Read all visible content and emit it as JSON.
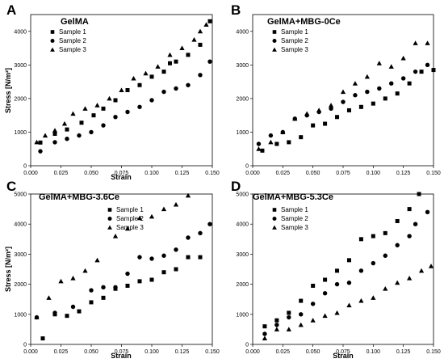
{
  "chart_data": [
    {
      "type": "scatter",
      "panel_label": "A",
      "title": "GelMA",
      "xlabel": "Strain",
      "ylabel": "Stress [N/m²]",
      "xlim": [
        0.0,
        0.15
      ],
      "ylim": [
        0,
        4500
      ],
      "xticks": [
        "0.000",
        "0.025",
        "0.050",
        "0.075",
        "0.100",
        "0.125",
        "0.150"
      ],
      "yticks": [
        "0",
        "1000",
        "2000",
        "3000",
        "4000"
      ],
      "legend_position": "top-left",
      "series": [
        {
          "name": "Sample 1",
          "marker": "square",
          "points": [
            [
              0.008,
              690
            ],
            [
              0.02,
              950
            ],
            [
              0.03,
              1080
            ],
            [
              0.042,
              1280
            ],
            [
              0.052,
              1500
            ],
            [
              0.06,
              1700
            ],
            [
              0.07,
              1950
            ],
            [
              0.08,
              2250
            ],
            [
              0.09,
              2400
            ],
            [
              0.1,
              2650
            ],
            [
              0.11,
              2800
            ],
            [
              0.115,
              3050
            ],
            [
              0.12,
              3100
            ],
            [
              0.13,
              3300
            ],
            [
              0.14,
              3600
            ],
            [
              0.148,
              4300
            ]
          ]
        },
        {
          "name": "Sample 2",
          "marker": "circle",
          "points": [
            [
              0.008,
              430
            ],
            [
              0.02,
              700
            ],
            [
              0.03,
              800
            ],
            [
              0.04,
              900
            ],
            [
              0.05,
              1000
            ],
            [
              0.06,
              1200
            ],
            [
              0.07,
              1450
            ],
            [
              0.08,
              1600
            ],
            [
              0.09,
              1750
            ],
            [
              0.1,
              1950
            ],
            [
              0.11,
              2200
            ],
            [
              0.12,
              2300
            ],
            [
              0.13,
              2400
            ],
            [
              0.14,
              2700
            ],
            [
              0.148,
              3100
            ]
          ]
        },
        {
          "name": "Sample 3",
          "marker": "triangle",
          "points": [
            [
              0.005,
              700
            ],
            [
              0.012,
              900
            ],
            [
              0.02,
              1050
            ],
            [
              0.028,
              1250
            ],
            [
              0.035,
              1550
            ],
            [
              0.045,
              1700
            ],
            [
              0.055,
              1800
            ],
            [
              0.065,
              2000
            ],
            [
              0.075,
              2250
            ],
            [
              0.085,
              2600
            ],
            [
              0.095,
              2750
            ],
            [
              0.105,
              2950
            ],
            [
              0.115,
              3300
            ],
            [
              0.125,
              3500
            ],
            [
              0.135,
              3750
            ],
            [
              0.14,
              4000
            ],
            [
              0.145,
              4200
            ]
          ]
        }
      ]
    },
    {
      "type": "scatter",
      "panel_label": "B",
      "title": "GelMA+MBG-0Ce",
      "xlabel": "",
      "ylabel": "",
      "xlim": [
        0.0,
        0.15
      ],
      "ylim": [
        0,
        4500
      ],
      "xticks": [
        "0.000",
        "0.025",
        "0.050",
        "0.075",
        "0.100",
        "0.125",
        "0.150"
      ],
      "yticks": [
        "0",
        "1000",
        "2000",
        "3000",
        "4000"
      ],
      "legend_position": "top-left",
      "series": [
        {
          "name": "Sample 1",
          "marker": "square",
          "points": [
            [
              0.008,
              450
            ],
            [
              0.02,
              650
            ],
            [
              0.03,
              700
            ],
            [
              0.04,
              850
            ],
            [
              0.05,
              1200
            ],
            [
              0.06,
              1250
            ],
            [
              0.07,
              1450
            ],
            [
              0.08,
              1650
            ],
            [
              0.09,
              1750
            ],
            [
              0.1,
              1850
            ],
            [
              0.11,
              2000
            ],
            [
              0.12,
              2150
            ],
            [
              0.13,
              2450
            ],
            [
              0.14,
              2800
            ],
            [
              0.15,
              2850
            ]
          ]
        },
        {
          "name": "Sample 2",
          "marker": "circle",
          "points": [
            [
              0.005,
              650
            ],
            [
              0.015,
              900
            ],
            [
              0.025,
              1000
            ],
            [
              0.035,
              1400
            ],
            [
              0.045,
              1500
            ],
            [
              0.055,
              1600
            ],
            [
              0.065,
              1700
            ],
            [
              0.075,
              1900
            ],
            [
              0.085,
              2100
            ],
            [
              0.095,
              2200
            ],
            [
              0.105,
              2300
            ],
            [
              0.115,
              2450
            ],
            [
              0.125,
              2600
            ],
            [
              0.135,
              2800
            ],
            [
              0.145,
              3000
            ]
          ]
        },
        {
          "name": "Sample 3",
          "marker": "triangle",
          "points": [
            [
              0.005,
              500
            ],
            [
              0.015,
              700
            ],
            [
              0.025,
              1000
            ],
            [
              0.035,
              1400
            ],
            [
              0.045,
              1550
            ],
            [
              0.055,
              1650
            ],
            [
              0.065,
              1800
            ],
            [
              0.075,
              2200
            ],
            [
              0.085,
              2450
            ],
            [
              0.095,
              2650
            ],
            [
              0.105,
              3050
            ],
            [
              0.115,
              2950
            ],
            [
              0.125,
              3200
            ],
            [
              0.135,
              3650
            ],
            [
              0.145,
              3650
            ]
          ]
        }
      ]
    },
    {
      "type": "scatter",
      "panel_label": "C",
      "title": "GelMA+MBG-3.6Ce",
      "xlabel": "Strain",
      "ylabel": "Stress [N/m²]",
      "xlim": [
        0.0,
        0.15
      ],
      "ylim": [
        0,
        5000
      ],
      "xticks": [
        "0.000",
        "0.025",
        "0.050",
        "0.075",
        "0.100",
        "0.125",
        "0.150"
      ],
      "yticks": [
        "0",
        "1000",
        "2000",
        "3000",
        "4000",
        "5000"
      ],
      "legend_position": "top-center",
      "series": [
        {
          "name": "Sample 1",
          "marker": "square",
          "points": [
            [
              0.01,
              200
            ],
            [
              0.02,
              1000
            ],
            [
              0.03,
              950
            ],
            [
              0.04,
              1100
            ],
            [
              0.05,
              1400
            ],
            [
              0.06,
              1550
            ],
            [
              0.07,
              1850
            ],
            [
              0.08,
              1950
            ],
            [
              0.09,
              2100
            ],
            [
              0.1,
              2150
            ],
            [
              0.11,
              2400
            ],
            [
              0.12,
              2500
            ],
            [
              0.13,
              2900
            ],
            [
              0.14,
              2900
            ]
          ]
        },
        {
          "name": "Sample 2",
          "marker": "circle",
          "points": [
            [
              0.005,
              900
            ],
            [
              0.02,
              1050
            ],
            [
              0.035,
              1250
            ],
            [
              0.05,
              1800
            ],
            [
              0.06,
              1900
            ],
            [
              0.07,
              1900
            ],
            [
              0.08,
              2350
            ],
            [
              0.09,
              2900
            ],
            [
              0.1,
              2850
            ],
            [
              0.11,
              2950
            ],
            [
              0.12,
              3150
            ],
            [
              0.13,
              3550
            ],
            [
              0.14,
              3700
            ],
            [
              0.148,
              4000
            ]
          ]
        },
        {
          "name": "Sample 3",
          "marker": "triangle",
          "points": [
            [
              0.005,
              900
            ],
            [
              0.015,
              1550
            ],
            [
              0.025,
              2100
            ],
            [
              0.035,
              2200
            ],
            [
              0.045,
              2450
            ],
            [
              0.055,
              2800
            ],
            [
              0.07,
              3600
            ],
            [
              0.08,
              3850
            ],
            [
              0.09,
              4200
            ],
            [
              0.1,
              4250
            ],
            [
              0.11,
              4500
            ],
            [
              0.12,
              4650
            ],
            [
              0.13,
              4950
            ]
          ]
        }
      ]
    },
    {
      "type": "scatter",
      "panel_label": "D",
      "title": "GelMA+MBG-5.3Ce",
      "xlabel": "Strain",
      "ylabel": "",
      "xlim": [
        0.0,
        0.15
      ],
      "ylim": [
        0,
        5000
      ],
      "xticks": [
        "0.000",
        "0.025",
        "0.050",
        "0.075",
        "0.100",
        "0.125",
        "0.150"
      ],
      "yticks": [
        "0",
        "1000",
        "2000",
        "3000",
        "4000",
        "5000"
      ],
      "legend_position": "top-left",
      "series": [
        {
          "name": "Sample 1",
          "marker": "square",
          "points": [
            [
              0.01,
              600
            ],
            [
              0.02,
              800
            ],
            [
              0.03,
              1050
            ],
            [
              0.04,
              1450
            ],
            [
              0.05,
              1950
            ],
            [
              0.06,
              2150
            ],
            [
              0.07,
              2450
            ],
            [
              0.08,
              2800
            ],
            [
              0.09,
              3500
            ],
            [
              0.1,
              3600
            ],
            [
              0.11,
              3700
            ],
            [
              0.12,
              4100
            ],
            [
              0.13,
              4500
            ],
            [
              0.138,
              5000
            ]
          ]
        },
        {
          "name": "Sample 2",
          "marker": "circle",
          "points": [
            [
              0.01,
              350
            ],
            [
              0.02,
              650
            ],
            [
              0.03,
              900
            ],
            [
              0.04,
              1000
            ],
            [
              0.05,
              1350
            ],
            [
              0.06,
              1700
            ],
            [
              0.07,
              2000
            ],
            [
              0.08,
              2050
            ],
            [
              0.09,
              2450
            ],
            [
              0.1,
              2700
            ],
            [
              0.11,
              2950
            ],
            [
              0.12,
              3300
            ],
            [
              0.13,
              3600
            ],
            [
              0.135,
              4000
            ],
            [
              0.145,
              4400
            ]
          ]
        },
        {
          "name": "Sample 3",
          "marker": "triangle",
          "points": [
            [
              0.01,
              200
            ],
            [
              0.02,
              500
            ],
            [
              0.03,
              500
            ],
            [
              0.04,
              650
            ],
            [
              0.05,
              800
            ],
            [
              0.06,
              950
            ],
            [
              0.07,
              1050
            ],
            [
              0.08,
              1300
            ],
            [
              0.09,
              1450
            ],
            [
              0.1,
              1550
            ],
            [
              0.11,
              1850
            ],
            [
              0.12,
              2050
            ],
            [
              0.13,
              2200
            ],
            [
              0.14,
              2450
            ],
            [
              0.148,
              2600
            ]
          ]
        }
      ]
    }
  ]
}
